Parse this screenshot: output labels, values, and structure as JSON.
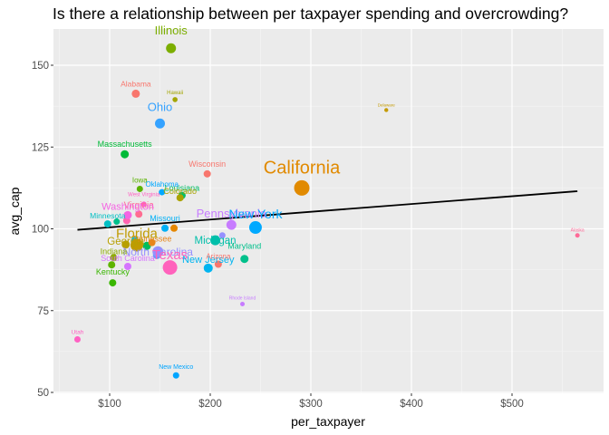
{
  "chart_data": {
    "type": "scatter",
    "title": "Is there a relationship between per taxpayer spending and overcrowding?",
    "xlabel": "per_taxpayer",
    "ylabel": "avg_cap",
    "xlim": [
      50,
      600
    ],
    "ylim": [
      50,
      160
    ],
    "x_ticks": [
      100,
      200,
      300,
      400,
      500
    ],
    "x_tick_labels": [
      "$100",
      "$200",
      "$300",
      "$400",
      "$500"
    ],
    "y_ticks": [
      50,
      75,
      100,
      125,
      150
    ],
    "y_tick_labels": [
      "50",
      "75",
      "100",
      "125",
      "150"
    ],
    "grid": true,
    "legend": "none",
    "trend_line": {
      "x": [
        68,
        565
      ],
      "y": [
        99.7,
        111.5
      ]
    },
    "points": [
      {
        "label": "Illinois",
        "x": 161,
        "y": 155.2,
        "size": 5.5,
        "label_size": 13,
        "color": "#7CAE00",
        "label_dy": -15
      },
      {
        "label": "Alabama",
        "x": 126,
        "y": 141.3,
        "size": 4.5,
        "label_size": 8.5,
        "color": "#F8766D",
        "label_dy": -8
      },
      {
        "label": "Hawaii",
        "x": 165,
        "y": 139.5,
        "size": 2.8,
        "label_size": 6,
        "color": "#A3A500",
        "label_dy": -6
      },
      {
        "label": "Delaware",
        "x": 375,
        "y": 136.3,
        "size": 2.2,
        "label_size": 4.5,
        "color": "#C49A00",
        "label_dy": -4
      },
      {
        "label": "Ohio",
        "x": 150,
        "y": 132.2,
        "size": 5.5,
        "label_size": 13,
        "color": "#35A2FF",
        "label_dy": -14
      },
      {
        "label": "Massachusetts",
        "x": 115,
        "y": 122.8,
        "size": 4.5,
        "label_size": 9,
        "color": "#00BA38",
        "label_dy": -8
      },
      {
        "label": "Wisconsin",
        "x": 197,
        "y": 116.8,
        "size": 4,
        "label_size": 9,
        "color": "#F8766D",
        "label_dy": -8
      },
      {
        "label": "California",
        "x": 291,
        "y": 112.5,
        "size": 8.5,
        "label_size": 20,
        "color": "#E18A00",
        "label_dy": -16
      },
      {
        "label": "Iowa",
        "x": 130,
        "y": 112.2,
        "size": 3.5,
        "label_size": 8,
        "color": "#5BB300",
        "label_dy": -7
      },
      {
        "label": "Oklahoma",
        "x": 152,
        "y": 111.2,
        "size": 3.5,
        "label_size": 8,
        "color": "#00A9FF",
        "label_dy": -6
      },
      {
        "label": "Louisiana",
        "x": 172,
        "y": 110.2,
        "size": 4,
        "label_size": 9,
        "color": "#00BE67",
        "label_dy": -5
      },
      {
        "label": "Colorado",
        "x": 170,
        "y": 109.5,
        "size": 4,
        "label_size": 9,
        "color": "#ABA300",
        "label_dy": -4
      },
      {
        "label": "West Virginia",
        "x": 134,
        "y": 107.5,
        "size": 3,
        "label_size": 6,
        "color": "#FF61C3",
        "label_dy": -9
      },
      {
        "label": "Virginia",
        "x": 129,
        "y": 104.5,
        "size": 4,
        "label_size": 10,
        "color": "#FF6C91",
        "label_dy": -7
      },
      {
        "label": "Washington",
        "x": 118,
        "y": 104.2,
        "size": 4.5,
        "label_size": 11,
        "color": "#F564E3",
        "label_dy": -6
      },
      {
        "label": "Minnesota",
        "x": 98,
        "y": 101.5,
        "size": 4,
        "label_size": 8.5,
        "color": "#00BFC4",
        "label_dy": -6
      },
      {
        "label": "Missouri",
        "x": 155,
        "y": 100.2,
        "size": 4,
        "label_size": 9,
        "color": "#00B0F6",
        "label_dy": -8
      },
      {
        "label": "Pennsylvania",
        "x": 221,
        "y": 101.2,
        "size": 5.5,
        "label_size": 13,
        "color": "#C77CFF",
        "label_dy": -8
      },
      {
        "label": "New York",
        "x": 245,
        "y": 100.4,
        "size": 7,
        "label_size": 14,
        "color": "#00A9FF",
        "label_dy": -10
      },
      {
        "label": "Michigan",
        "x": 205,
        "y": 96.5,
        "size": 5.5,
        "label_size": 11.5,
        "color": "#00BFAA",
        "label_dy": 4
      },
      {
        "label": "Tennessee",
        "x": 142,
        "y": 95.8,
        "size": 4,
        "label_size": 9,
        "color": "#E7861B",
        "label_dy": -1
      },
      {
        "label": "Georgia",
        "x": 116,
        "y": 95.2,
        "size": 4.5,
        "label_size": 11.5,
        "color": "#B79F00",
        "label_dy": 0
      },
      {
        "label": "Florida",
        "x": 127,
        "y": 95.0,
        "size": 7,
        "label_size": 15,
        "color": "#C09B00",
        "label_dy": -8
      },
      {
        "label": "North Carolina",
        "x": 148,
        "y": 93.0,
        "size": 6,
        "label_size": 12,
        "color": "#9590FF",
        "label_dy": 4
      },
      {
        "label": "Texas",
        "x": 160,
        "y": 88.2,
        "size": 8,
        "label_size": 15,
        "color": "#FF62BC",
        "label_dy": -9
      },
      {
        "label": "New Jersey",
        "x": 198,
        "y": 88.0,
        "size": 5,
        "label_size": 11,
        "color": "#00B4F0",
        "label_dy": -6
      },
      {
        "label": "Maryland",
        "x": 234,
        "y": 90.8,
        "size": 4.5,
        "label_size": 9,
        "color": "#00C08B",
        "label_dy": -11
      },
      {
        "label": "Arizona",
        "x": 208,
        "y": 89.2,
        "size": 4,
        "label_size": 8,
        "color": "#F8766D",
        "label_dy": -6
      },
      {
        "label": "Indiana",
        "x": 104,
        "y": 91.2,
        "size": 4,
        "label_size": 9,
        "color": "#8EAB00",
        "label_dy": -4
      },
      {
        "label": "South Carolina",
        "x": 118,
        "y": 88.5,
        "size": 4,
        "label_size": 9,
        "color": "#D575FE",
        "label_dy": -6
      },
      {
        "label": "Kentucky",
        "x": 103,
        "y": 83.5,
        "size": 4,
        "label_size": 9,
        "color": "#39B600",
        "label_dy": -9
      },
      {
        "label": "Rhode Island",
        "x": 232,
        "y": 77.0,
        "size": 2.5,
        "label_size": 5,
        "color": "#C77CFF",
        "label_dy": -5
      },
      {
        "label": "Alaska",
        "x": 565,
        "y": 98.0,
        "size": 2.5,
        "label_size": 5,
        "color": "#FF6A98",
        "label_dy": -4
      },
      {
        "label": "Utah",
        "x": 68,
        "y": 66.2,
        "size": 3.5,
        "label_size": 6.5,
        "color": "#FF61C3",
        "label_dy": -6
      },
      {
        "label": "New Mexico",
        "x": 166,
        "y": 55.2,
        "size": 3.5,
        "label_size": 7,
        "color": "#00A5FF",
        "label_dy": -7
      }
    ],
    "unlabeled_points": [
      {
        "x": 107,
        "y": 102.2,
        "size": 3.5,
        "color": "#00C08B"
      },
      {
        "x": 117,
        "y": 102.5,
        "size": 4,
        "color": "#FF64B0"
      },
      {
        "x": 164,
        "y": 100.2,
        "size": 4,
        "color": "#E58700"
      },
      {
        "x": 212,
        "y": 98.0,
        "size": 3.5,
        "color": "#9590FF"
      },
      {
        "x": 137,
        "y": 94.8,
        "size": 4.5,
        "color": "#00BD5C"
      },
      {
        "x": 125,
        "y": 96.5,
        "size": 4,
        "color": "#00B8E7"
      },
      {
        "x": 102,
        "y": 89.0,
        "size": 4,
        "color": "#5EB300"
      },
      {
        "x": 147,
        "y": 92.0,
        "size": 4.5,
        "color": "#619CFF"
      }
    ]
  }
}
